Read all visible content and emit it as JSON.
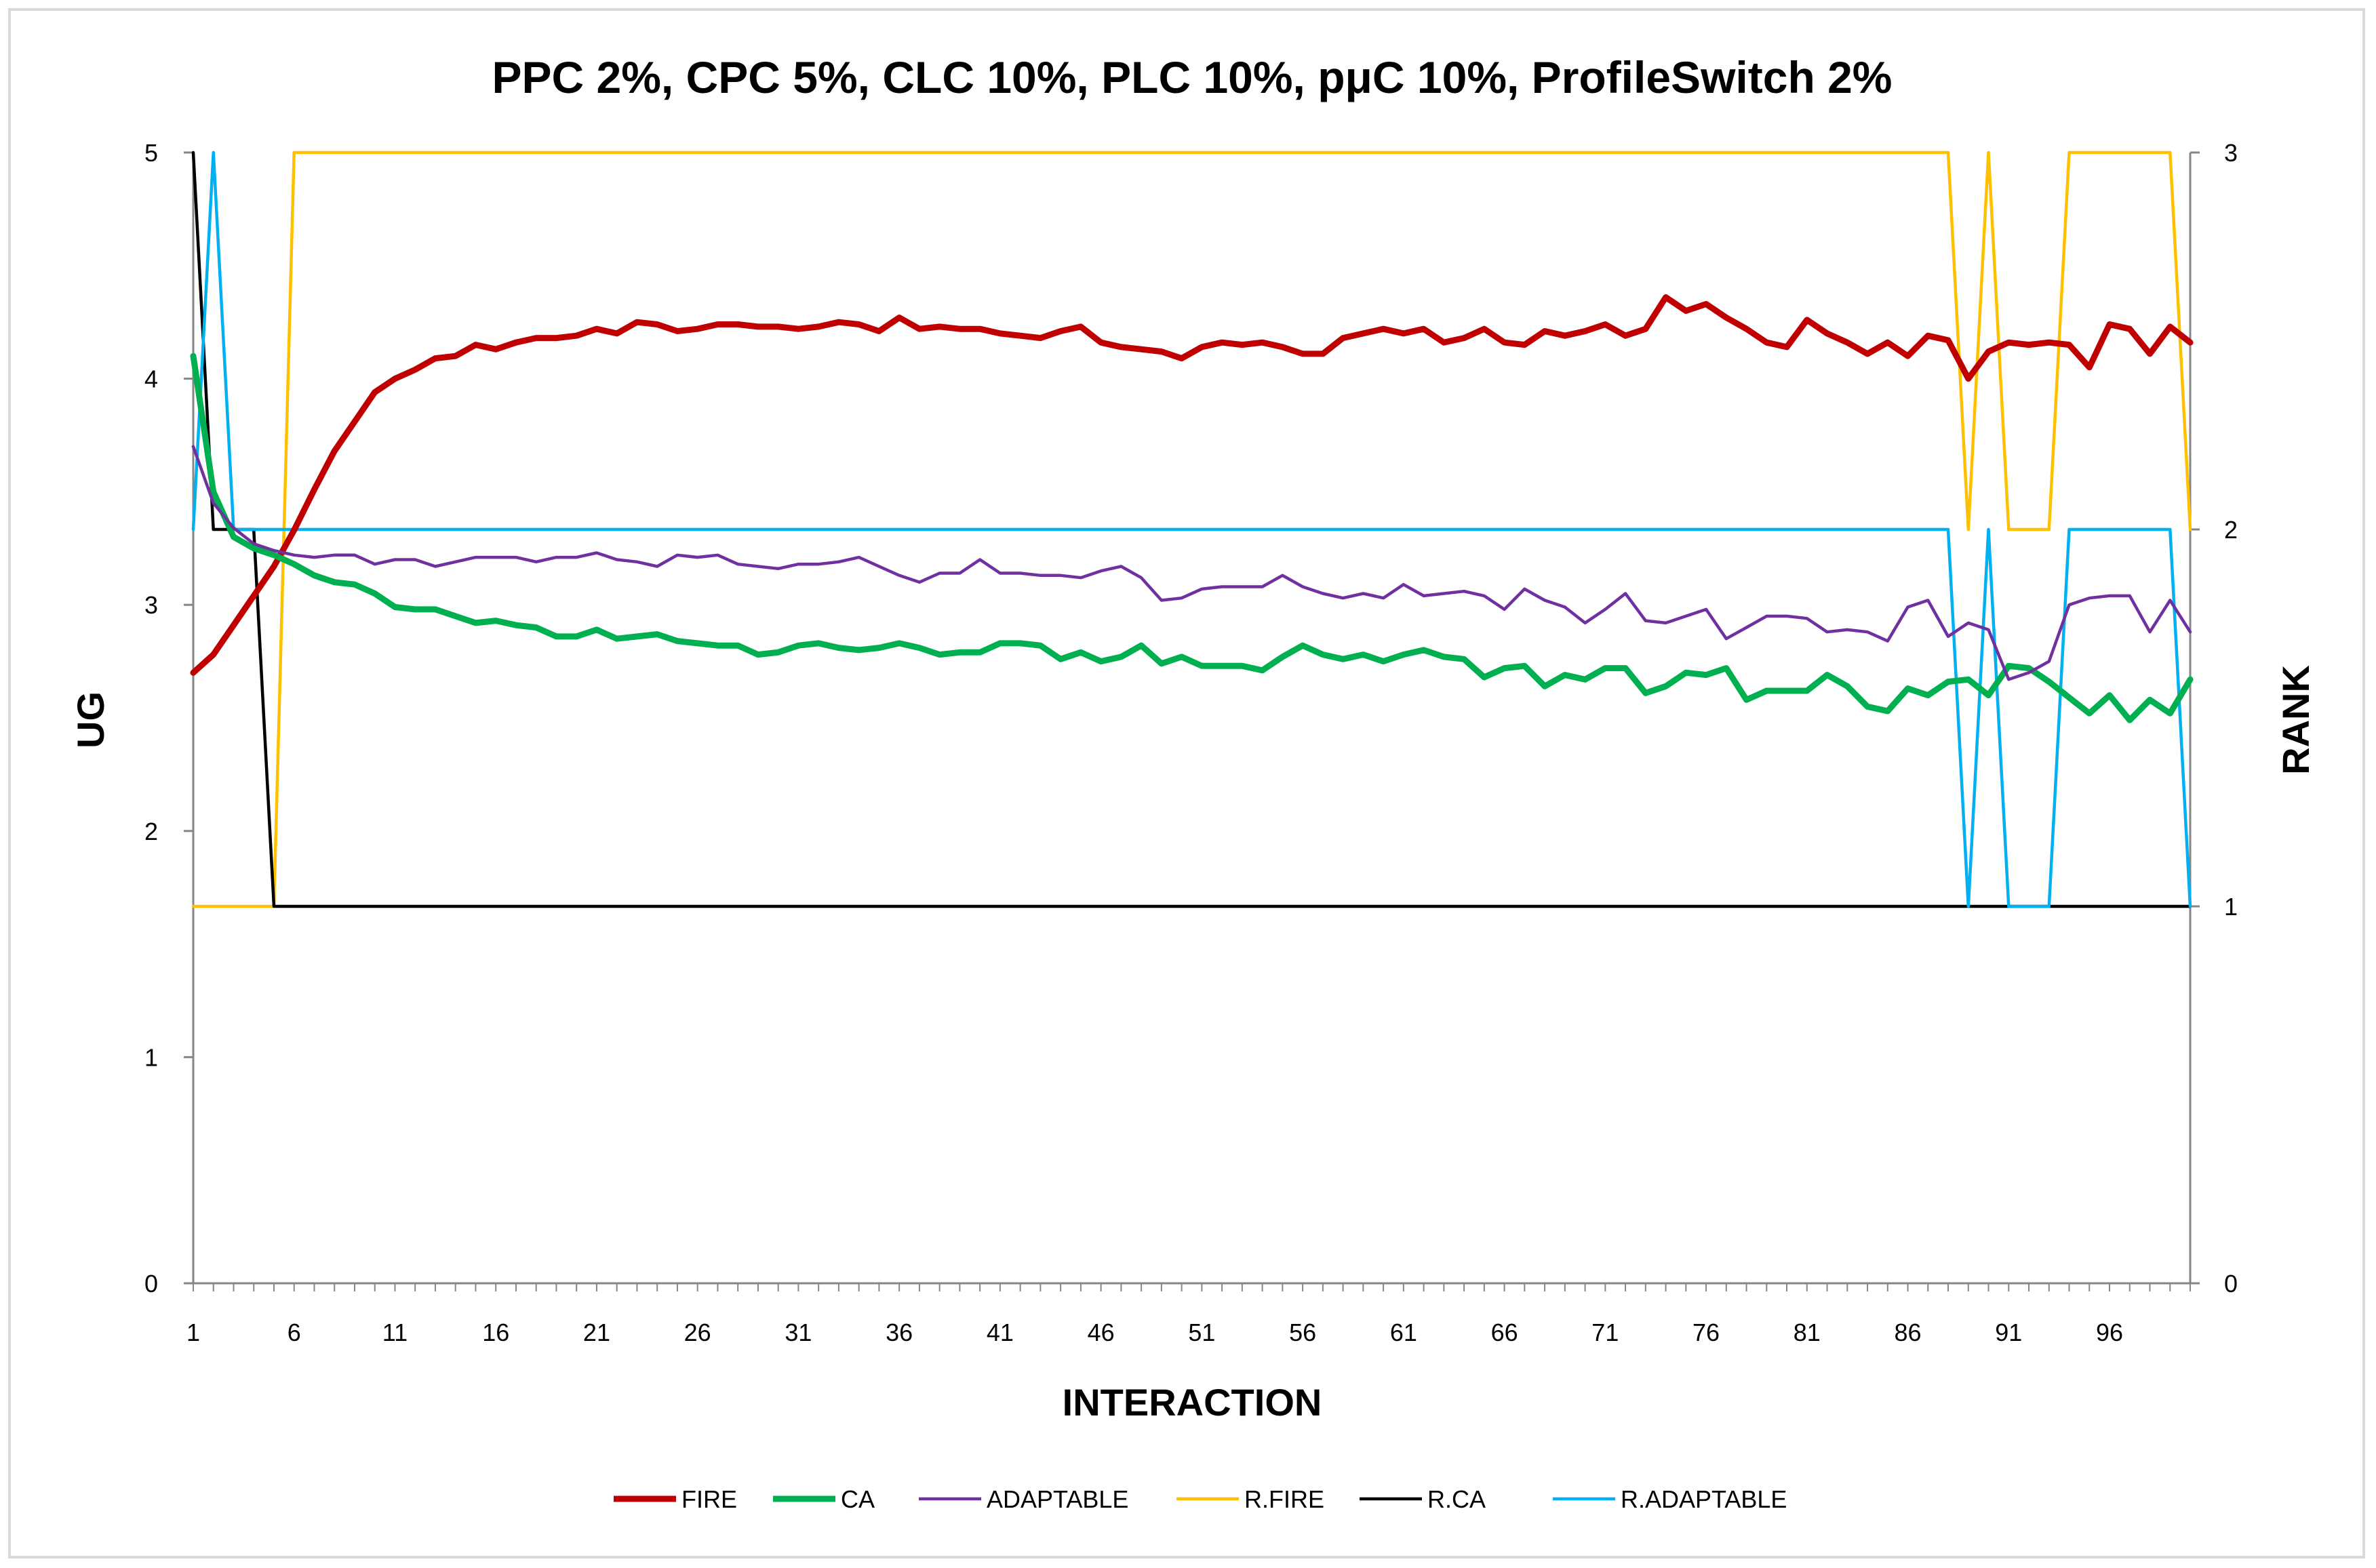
{
  "chart_data": {
    "type": "line",
    "title": "PPC 2%, CPC 5%, CLC 10%, PLC 10%, pμC 10%, ProfileSwitch 2%",
    "xlabel": "INTERACTION",
    "ylabel": "UG",
    "y2label": "RANK",
    "ylim": [
      0,
      5
    ],
    "y2lim": [
      0,
      3
    ],
    "yticks": [
      "0",
      "1",
      "2",
      "3",
      "4",
      "5"
    ],
    "y2ticks": [
      "0",
      "1",
      "2",
      "3"
    ],
    "xticks": [
      "1",
      "6",
      "11",
      "16",
      "21",
      "26",
      "31",
      "36",
      "41",
      "46",
      "51",
      "56",
      "61",
      "66",
      "71",
      "76",
      "81",
      "86",
      "91",
      "96"
    ],
    "x_range": [
      1,
      100
    ],
    "grid": false,
    "legend_position": "bottom",
    "series": [
      {
        "name": "FIRE",
        "axis": "left",
        "color": "#c00000",
        "width": "thick",
        "values": [
          2.7,
          2.78,
          2.91,
          3.04,
          3.17,
          3.33,
          3.51,
          3.68,
          3.81,
          3.94,
          4.0,
          4.04,
          4.09,
          4.1,
          4.15,
          4.13,
          4.16,
          4.18,
          4.18,
          4.19,
          4.22,
          4.2,
          4.25,
          4.24,
          4.21,
          4.22,
          4.24,
          4.24,
          4.23,
          4.23,
          4.22,
          4.23,
          4.25,
          4.24,
          4.21,
          4.27,
          4.22,
          4.23,
          4.22,
          4.22,
          4.2,
          4.19,
          4.18,
          4.21,
          4.23,
          4.16,
          4.14,
          4.13,
          4.12,
          4.09,
          4.14,
          4.16,
          4.15,
          4.16,
          4.14,
          4.11,
          4.11,
          4.18,
          4.2,
          4.22,
          4.2,
          4.22,
          4.16,
          4.18,
          4.22,
          4.16,
          4.15,
          4.21,
          4.19,
          4.21,
          4.24,
          4.19,
          4.22,
          4.36,
          4.3,
          4.33,
          4.27,
          4.22,
          4.16,
          4.14,
          4.26,
          4.2,
          4.16,
          4.11,
          4.16,
          4.1,
          4.19,
          4.17,
          4.0,
          4.12,
          4.16,
          4.15,
          4.16,
          4.15,
          4.05,
          4.24,
          4.22,
          4.11,
          4.23,
          4.16
        ]
      },
      {
        "name": "CA",
        "axis": "left",
        "color": "#00b050",
        "width": "thick",
        "values": [
          4.1,
          3.5,
          3.3,
          3.25,
          3.22,
          3.18,
          3.13,
          3.1,
          3.09,
          3.05,
          2.99,
          2.98,
          2.98,
          2.95,
          2.92,
          2.93,
          2.91,
          2.9,
          2.86,
          2.86,
          2.89,
          2.85,
          2.86,
          2.87,
          2.84,
          2.83,
          2.82,
          2.82,
          2.78,
          2.79,
          2.82,
          2.83,
          2.81,
          2.8,
          2.81,
          2.83,
          2.81,
          2.78,
          2.79,
          2.79,
          2.83,
          2.83,
          2.82,
          2.76,
          2.79,
          2.75,
          2.77,
          2.82,
          2.74,
          2.77,
          2.73,
          2.73,
          2.73,
          2.71,
          2.77,
          2.82,
          2.78,
          2.76,
          2.78,
          2.75,
          2.78,
          2.8,
          2.77,
          2.76,
          2.68,
          2.72,
          2.73,
          2.64,
          2.69,
          2.67,
          2.72,
          2.72,
          2.61,
          2.64,
          2.7,
          2.69,
          2.72,
          2.58,
          2.62,
          2.62,
          2.62,
          2.69,
          2.64,
          2.55,
          2.53,
          2.63,
          2.6,
          2.66,
          2.67,
          2.6,
          2.73,
          2.72,
          2.66,
          2.59,
          2.52,
          2.6,
          2.49,
          2.58,
          2.52,
          2.67
        ]
      },
      {
        "name": "ADAPTABLE",
        "axis": "left",
        "color": "#7030a0",
        "width": "thin",
        "values": [
          3.7,
          3.45,
          3.34,
          3.27,
          3.24,
          3.22,
          3.21,
          3.22,
          3.22,
          3.18,
          3.2,
          3.2,
          3.17,
          3.19,
          3.21,
          3.21,
          3.21,
          3.19,
          3.21,
          3.21,
          3.23,
          3.2,
          3.19,
          3.17,
          3.22,
          3.21,
          3.22,
          3.18,
          3.17,
          3.16,
          3.18,
          3.18,
          3.19,
          3.21,
          3.17,
          3.13,
          3.1,
          3.14,
          3.14,
          3.2,
          3.14,
          3.14,
          3.13,
          3.13,
          3.12,
          3.15,
          3.17,
          3.12,
          3.02,
          3.03,
          3.07,
          3.08,
          3.08,
          3.08,
          3.13,
          3.08,
          3.05,
          3.03,
          3.05,
          3.03,
          3.09,
          3.04,
          3.05,
          3.06,
          3.04,
          2.98,
          3.07,
          3.02,
          2.99,
          2.92,
          2.98,
          3.05,
          2.93,
          2.92,
          2.95,
          2.98,
          2.85,
          2.9,
          2.95,
          2.95,
          2.94,
          2.88,
          2.89,
          2.88,
          2.84,
          2.99,
          3.02,
          2.86,
          2.92,
          2.89,
          2.67,
          2.7,
          2.75,
          3.0,
          3.03,
          3.04,
          3.04,
          2.88,
          3.02,
          2.88
        ]
      },
      {
        "name": "R.FIRE",
        "axis": "right",
        "color": "#ffc000",
        "width": "thin",
        "values": [
          1,
          1,
          1,
          1,
          1,
          3,
          3,
          3,
          3,
          3,
          3,
          3,
          3,
          3,
          3,
          3,
          3,
          3,
          3,
          3,
          3,
          3,
          3,
          3,
          3,
          3,
          3,
          3,
          3,
          3,
          3,
          3,
          3,
          3,
          3,
          3,
          3,
          3,
          3,
          3,
          3,
          3,
          3,
          3,
          3,
          3,
          3,
          3,
          3,
          3,
          3,
          3,
          3,
          3,
          3,
          3,
          3,
          3,
          3,
          3,
          3,
          3,
          3,
          3,
          3,
          3,
          3,
          3,
          3,
          3,
          3,
          3,
          3,
          3,
          3,
          3,
          3,
          3,
          3,
          3,
          3,
          3,
          3,
          3,
          3,
          3,
          3,
          3,
          2,
          3,
          2,
          2,
          2,
          3,
          3,
          3,
          3,
          3,
          3,
          2
        ]
      },
      {
        "name": "R.CA",
        "axis": "right",
        "color": "#000000",
        "width": "thin",
        "values": [
          3,
          2,
          2,
          2,
          1,
          1,
          1,
          1,
          1,
          1,
          1,
          1,
          1,
          1,
          1,
          1,
          1,
          1,
          1,
          1,
          1,
          1,
          1,
          1,
          1,
          1,
          1,
          1,
          1,
          1,
          1,
          1,
          1,
          1,
          1,
          1,
          1,
          1,
          1,
          1,
          1,
          1,
          1,
          1,
          1,
          1,
          1,
          1,
          1,
          1,
          1,
          1,
          1,
          1,
          1,
          1,
          1,
          1,
          1,
          1,
          1,
          1,
          1,
          1,
          1,
          1,
          1,
          1,
          1,
          1,
          1,
          1,
          1,
          1,
          1,
          1,
          1,
          1,
          1,
          1,
          1,
          1,
          1,
          1,
          1,
          1,
          1,
          1,
          1,
          1,
          1,
          1,
          1,
          1,
          1,
          1,
          1,
          1,
          1,
          1
        ]
      },
      {
        "name": "R.ADAPTABLE",
        "axis": "right",
        "color": "#00b0f0",
        "width": "thin",
        "values": [
          2,
          3,
          2,
          2,
          2,
          2,
          2,
          2,
          2,
          2,
          2,
          2,
          2,
          2,
          2,
          2,
          2,
          2,
          2,
          2,
          2,
          2,
          2,
          2,
          2,
          2,
          2,
          2,
          2,
          2,
          2,
          2,
          2,
          2,
          2,
          2,
          2,
          2,
          2,
          2,
          2,
          2,
          2,
          2,
          2,
          2,
          2,
          2,
          2,
          2,
          2,
          2,
          2,
          2,
          2,
          2,
          2,
          2,
          2,
          2,
          2,
          2,
          2,
          2,
          2,
          2,
          2,
          2,
          2,
          2,
          2,
          2,
          2,
          2,
          2,
          2,
          2,
          2,
          2,
          2,
          2,
          2,
          2,
          2,
          2,
          2,
          2,
          2,
          1,
          2,
          1,
          1,
          1,
          2,
          2,
          2,
          2,
          2,
          2,
          1
        ]
      }
    ]
  }
}
